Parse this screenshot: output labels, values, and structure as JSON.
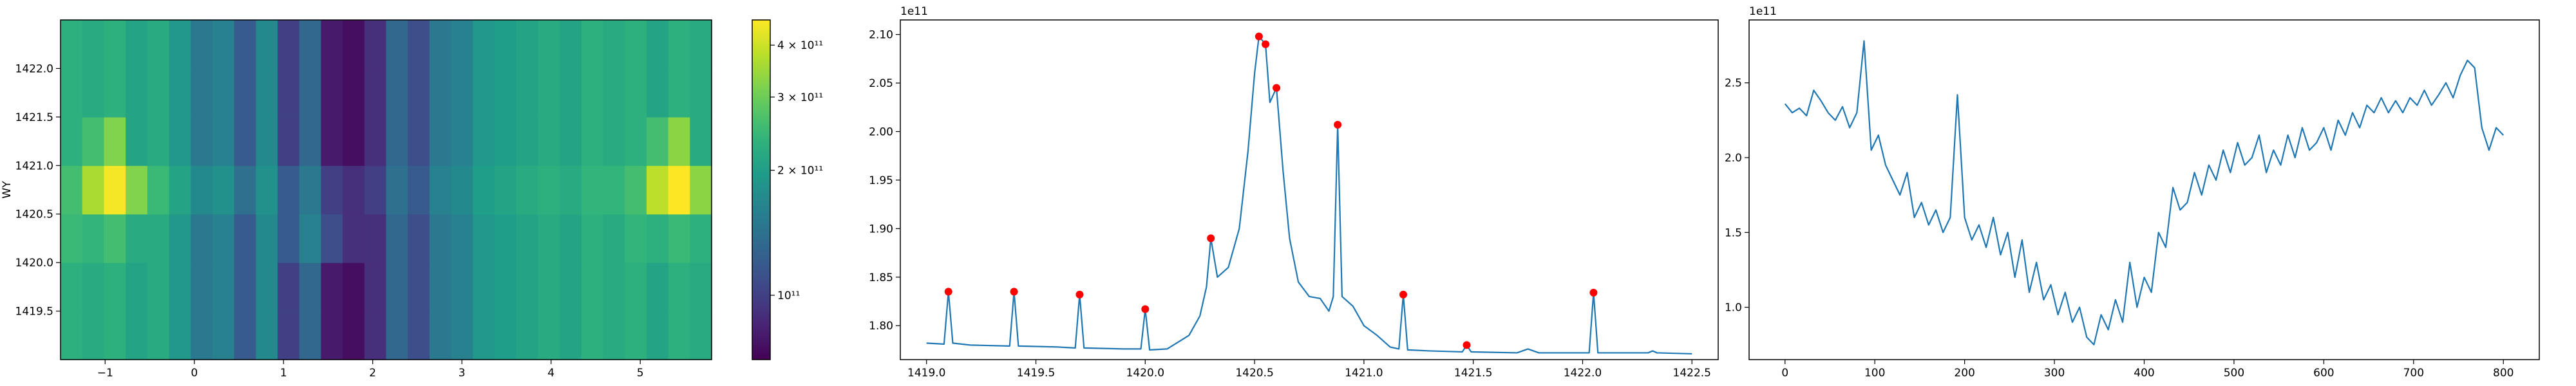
{
  "chart_data": [
    {
      "type": "heatmap",
      "ylabel": "WY",
      "colormap": "viridis",
      "color_scale": "log",
      "xlim": [
        -1.5,
        5.8
      ],
      "ylim": [
        1419.0,
        1422.5
      ],
      "xticks": [
        {
          "value": -1,
          "label": "−1"
        },
        0,
        1,
        2,
        3,
        4,
        5
      ],
      "yticks": [
        {
          "value": 1419.5,
          "label": "1419.5"
        },
        {
          "value": 1420.0,
          "label": "1420.0"
        },
        {
          "value": 1420.5,
          "label": "1420.5"
        },
        {
          "value": 1421.0,
          "label": "1421.0"
        },
        {
          "value": 1421.5,
          "label": "1421.5"
        },
        {
          "value": 1422.0,
          "label": "1422.0"
        }
      ],
      "clim": [
        70000000000.0,
        460000000000.0
      ],
      "cticks": [
        {
          "value": 100000000000.0,
          "label": "10¹¹"
        },
        {
          "value": 200000000000.0,
          "label": "2 × 10¹¹"
        },
        {
          "value": 300000000000.0,
          "label": "3 × 10¹¹"
        },
        {
          "value": 400000000000.0,
          "label": "4 × 10¹¹"
        }
      ],
      "z": [
        [
          230000000000.0,
          220000000000.0,
          230000000000.0,
          210000000000.0,
          220000000000.0,
          190000000000.0,
          150000000000.0,
          160000000000.0,
          120000000000.0,
          170000000000.0,
          100000000000.0,
          130000000000.0,
          80000000000.0,
          75000000000.0,
          90000000000.0,
          130000000000.0,
          110000000000.0,
          150000000000.0,
          160000000000.0,
          190000000000.0,
          200000000000.0,
          210000000000.0,
          220000000000.0,
          210000000000.0,
          230000000000.0,
          220000000000.0,
          230000000000.0,
          210000000000.0,
          230000000000.0,
          220000000000.0
        ],
        [
          230000000000.0,
          220000000000.0,
          230000000000.0,
          210000000000.0,
          220000000000.0,
          190000000000.0,
          150000000000.0,
          160000000000.0,
          120000000000.0,
          170000000000.0,
          100000000000.0,
          130000000000.0,
          80000000000.0,
          75000000000.0,
          90000000000.0,
          130000000000.0,
          110000000000.0,
          150000000000.0,
          160000000000.0,
          190000000000.0,
          200000000000.0,
          210000000000.0,
          220000000000.0,
          210000000000.0,
          230000000000.0,
          220000000000.0,
          230000000000.0,
          210000000000.0,
          230000000000.0,
          220000000000.0
        ],
        [
          250000000000.0,
          240000000000.0,
          260000000000.0,
          220000000000.0,
          220000000000.0,
          190000000000.0,
          150000000000.0,
          160000000000.0,
          120000000000.0,
          170000000000.0,
          120000000000.0,
          160000000000.0,
          110000000000.0,
          90000000000.0,
          90000000000.0,
          130000000000.0,
          110000000000.0,
          150000000000.0,
          160000000000.0,
          190000000000.0,
          200000000000.0,
          210000000000.0,
          220000000000.0,
          210000000000.0,
          230000000000.0,
          220000000000.0,
          240000000000.0,
          230000000000.0,
          250000000000.0,
          230000000000.0
        ],
        [
          260000000000.0,
          360000000000.0,
          450000000000.0,
          320000000000.0,
          250000000000.0,
          210000000000.0,
          170000000000.0,
          180000000000.0,
          140000000000.0,
          180000000000.0,
          120000000000.0,
          150000000000.0,
          100000000000.0,
          90000000000.0,
          100000000000.0,
          140000000000.0,
          120000000000.0,
          160000000000.0,
          170000000000.0,
          200000000000.0,
          210000000000.0,
          220000000000.0,
          230000000000.0,
          220000000000.0,
          240000000000.0,
          240000000000.0,
          260000000000.0,
          380000000000.0,
          460000000000.0,
          330000000000.0
        ],
        [
          230000000000.0,
          260000000000.0,
          320000000000.0,
          210000000000.0,
          220000000000.0,
          190000000000.0,
          150000000000.0,
          160000000000.0,
          120000000000.0,
          170000000000.0,
          100000000000.0,
          130000000000.0,
          80000000000.0,
          75000000000.0,
          90000000000.0,
          130000000000.0,
          110000000000.0,
          150000000000.0,
          160000000000.0,
          190000000000.0,
          200000000000.0,
          210000000000.0,
          220000000000.0,
          210000000000.0,
          230000000000.0,
          220000000000.0,
          230000000000.0,
          260000000000.0,
          330000000000.0,
          220000000000.0
        ],
        [
          230000000000.0,
          220000000000.0,
          230000000000.0,
          210000000000.0,
          220000000000.0,
          190000000000.0,
          150000000000.0,
          160000000000.0,
          120000000000.0,
          170000000000.0,
          100000000000.0,
          130000000000.0,
          80000000000.0,
          75000000000.0,
          90000000000.0,
          130000000000.0,
          110000000000.0,
          150000000000.0,
          160000000000.0,
          190000000000.0,
          200000000000.0,
          210000000000.0,
          220000000000.0,
          210000000000.0,
          230000000000.0,
          220000000000.0,
          230000000000.0,
          210000000000.0,
          230000000000.0,
          220000000000.0
        ],
        [
          230000000000.0,
          220000000000.0,
          230000000000.0,
          210000000000.0,
          220000000000.0,
          190000000000.0,
          150000000000.0,
          160000000000.0,
          120000000000.0,
          170000000000.0,
          100000000000.0,
          130000000000.0,
          80000000000.0,
          75000000000.0,
          90000000000.0,
          130000000000.0,
          110000000000.0,
          150000000000.0,
          160000000000.0,
          190000000000.0,
          200000000000.0,
          210000000000.0,
          220000000000.0,
          210000000000.0,
          230000000000.0,
          220000000000.0,
          230000000000.0,
          210000000000.0,
          230000000000.0,
          220000000000.0
        ]
      ]
    },
    {
      "type": "line",
      "offset_label": "1e11",
      "xlim": [
        1418.88,
        1422.62
      ],
      "ylim": [
        1.765,
        2.115
      ],
      "xticks": [
        {
          "value": 1419.0,
          "label": "1419.0"
        },
        {
          "value": 1419.5,
          "label": "1419.5"
        },
        {
          "value": 1420.0,
          "label": "1420.0"
        },
        {
          "value": 1420.5,
          "label": "1420.5"
        },
        {
          "value": 1421.0,
          "label": "1421.0"
        },
        {
          "value": 1421.5,
          "label": "1421.5"
        },
        {
          "value": 1422.0,
          "label": "1422.0"
        },
        {
          "value": 1422.5,
          "label": "1422.5"
        }
      ],
      "yticks": [
        {
          "value": 1.8,
          "label": "1.80"
        },
        {
          "value": 1.85,
          "label": "1.85"
        },
        {
          "value": 1.9,
          "label": "1.90"
        },
        {
          "value": 1.95,
          "label": "1.95"
        },
        {
          "value": 2.0,
          "label": "2.00"
        },
        {
          "value": 2.05,
          "label": "2.05"
        },
        {
          "value": 2.1,
          "label": "2.10"
        }
      ],
      "series": [
        {
          "type": "line",
          "color": "#1f77b4",
          "x": [
            1419.0,
            1419.08,
            1419.1,
            1419.12,
            1419.2,
            1419.38,
            1419.4,
            1419.42,
            1419.6,
            1419.68,
            1419.7,
            1419.72,
            1419.9,
            1419.98,
            1420.0,
            1420.02,
            1420.1,
            1420.2,
            1420.25,
            1420.28,
            1420.3,
            1420.33,
            1420.38,
            1420.43,
            1420.47,
            1420.5,
            1420.52,
            1420.55,
            1420.57,
            1420.6,
            1420.63,
            1420.66,
            1420.7,
            1420.75,
            1420.8,
            1420.84,
            1420.86,
            1420.88,
            1420.9,
            1420.95,
            1421.0,
            1421.06,
            1421.12,
            1421.16,
            1421.18,
            1421.2,
            1421.3,
            1421.45,
            1421.47,
            1421.49,
            1421.7,
            1421.75,
            1421.8,
            1422.03,
            1422.05,
            1422.07,
            1422.3,
            1422.32,
            1422.34,
            1422.5
          ],
          "values": [
            1.782,
            1.781,
            1.835,
            1.782,
            1.78,
            1.779,
            1.835,
            1.779,
            1.778,
            1.777,
            1.832,
            1.777,
            1.776,
            1.776,
            1.817,
            1.775,
            1.776,
            1.79,
            1.81,
            1.84,
            1.89,
            1.85,
            1.86,
            1.9,
            1.98,
            2.06,
            2.098,
            2.09,
            2.03,
            2.045,
            1.96,
            1.89,
            1.845,
            1.83,
            1.828,
            1.815,
            1.83,
            2.007,
            1.83,
            1.82,
            1.8,
            1.79,
            1.778,
            1.776,
            1.832,
            1.775,
            1.774,
            1.773,
            1.78,
            1.773,
            1.772,
            1.776,
            1.772,
            1.772,
            1.834,
            1.772,
            1.772,
            1.774,
            1.772,
            1.771
          ]
        },
        {
          "type": "scatter",
          "color": "#ff0000",
          "x": [
            1419.1,
            1419.4,
            1419.7,
            1420.0,
            1420.3,
            1420.52,
            1420.55,
            1420.6,
            1420.88,
            1421.18,
            1421.47,
            1422.05
          ],
          "values": [
            1.835,
            1.835,
            1.832,
            1.817,
            1.89,
            2.098,
            2.09,
            2.045,
            2.007,
            1.832,
            1.78,
            1.834
          ]
        }
      ]
    },
    {
      "type": "line",
      "offset_label": "1e11",
      "xlim": [
        -40,
        840
      ],
      "ylim": [
        0.65,
        2.92
      ],
      "xticks": [
        0,
        100,
        200,
        300,
        400,
        500,
        600,
        700,
        800
      ],
      "yticks": [
        {
          "value": 1,
          "label": "1.0"
        },
        {
          "value": 1.5,
          "label": "1.5"
        },
        {
          "value": 2,
          "label": "2.0"
        },
        {
          "value": 2.5,
          "label": "2.5"
        }
      ],
      "series": [
        {
          "type": "line",
          "color": "#1f77b4",
          "x": [
            0,
            8,
            16,
            24,
            32,
            40,
            48,
            56,
            64,
            72,
            80,
            88,
            96,
            104,
            112,
            120,
            128,
            136,
            144,
            152,
            160,
            168,
            176,
            184,
            192,
            200,
            208,
            216,
            224,
            232,
            240,
            248,
            256,
            264,
            272,
            280,
            288,
            296,
            304,
            312,
            320,
            328,
            336,
            344,
            352,
            360,
            368,
            376,
            384,
            392,
            400,
            408,
            416,
            424,
            432,
            440,
            448,
            456,
            464,
            472,
            480,
            488,
            496,
            504,
            512,
            520,
            528,
            536,
            544,
            552,
            560,
            568,
            576,
            584,
            592,
            600,
            608,
            616,
            624,
            632,
            640,
            648,
            656,
            664,
            672,
            680,
            688,
            696,
            704,
            712,
            720,
            728,
            736,
            744,
            752,
            760,
            768,
            776,
            784,
            792,
            800
          ],
          "values": [
            2.36,
            2.3,
            2.33,
            2.28,
            2.45,
            2.38,
            2.3,
            2.25,
            2.34,
            2.2,
            2.3,
            2.78,
            2.05,
            2.15,
            1.95,
            1.85,
            1.75,
            1.9,
            1.6,
            1.7,
            1.55,
            1.65,
            1.5,
            1.6,
            2.42,
            1.6,
            1.45,
            1.55,
            1.4,
            1.6,
            1.35,
            1.5,
            1.2,
            1.45,
            1.1,
            1.3,
            1.05,
            1.15,
            0.95,
            1.1,
            0.9,
            1.0,
            0.8,
            0.75,
            0.95,
            0.85,
            1.05,
            0.9,
            1.3,
            1.0,
            1.2,
            1.1,
            1.5,
            1.4,
            1.8,
            1.65,
            1.7,
            1.9,
            1.75,
            1.95,
            1.85,
            2.05,
            1.9,
            2.1,
            1.95,
            2.0,
            2.15,
            1.9,
            2.05,
            1.95,
            2.15,
            2.0,
            2.2,
            2.05,
            2.1,
            2.2,
            2.05,
            2.25,
            2.15,
            2.3,
            2.2,
            2.35,
            2.3,
            2.4,
            2.3,
            2.38,
            2.3,
            2.4,
            2.35,
            2.45,
            2.35,
            2.42,
            2.5,
            2.4,
            2.55,
            2.65,
            2.6,
            2.2,
            2.05,
            2.2,
            2.15
          ]
        }
      ]
    }
  ]
}
